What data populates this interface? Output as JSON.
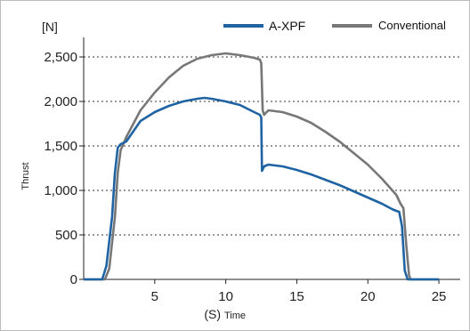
{
  "chart_data": {
    "type": "line",
    "y_unit": "[N]",
    "ylabel": "Thrust",
    "x_unit": "(S)",
    "xlabel": "Time",
    "xlim": [
      0,
      26.5
    ],
    "ylim": [
      0,
      2700
    ],
    "x_ticks": [
      5,
      10,
      15,
      20,
      25
    ],
    "y_ticks": [
      0,
      500,
      1000,
      1500,
      2000,
      2500
    ],
    "x_tick_labels": [
      "5",
      "10",
      "15",
      "20",
      "25"
    ],
    "y_tick_labels": [
      "0",
      "500",
      "1,000",
      "1,500",
      "2,000",
      "2,500"
    ],
    "grid": "horizontal dotted",
    "legend_position": "top",
    "colors": {
      "a_xpf": "#1f63a3",
      "conventional": "#777777"
    },
    "series": [
      {
        "name": "A-XPF",
        "x": [
          0,
          1.3,
          1.6,
          2.0,
          2.2,
          2.4,
          2.6,
          3.0,
          4.0,
          5.0,
          6.0,
          7.0,
          8.0,
          8.5,
          9.0,
          10.0,
          11.0,
          12.0,
          12.4,
          12.5,
          12.55,
          12.7,
          13.0,
          14.0,
          15.0,
          16.0,
          17.0,
          18.0,
          19.0,
          20.0,
          21.0,
          21.7,
          22.0,
          22.2,
          22.4,
          22.6,
          22.8,
          23.0,
          24.0,
          25.0
        ],
        "y": [
          0,
          0,
          150,
          700,
          1200,
          1480,
          1520,
          1550,
          1780,
          1880,
          1950,
          2000,
          2030,
          2040,
          2030,
          2000,
          1960,
          1880,
          1850,
          1820,
          1220,
          1270,
          1290,
          1270,
          1230,
          1180,
          1120,
          1060,
          990,
          920,
          850,
          790,
          770,
          760,
          600,
          100,
          0,
          0,
          0,
          0
        ]
      },
      {
        "name": "Conventional",
        "x": [
          0,
          1.5,
          1.8,
          2.2,
          2.4,
          2.6,
          3.0,
          4.0,
          5.0,
          6.0,
          7.0,
          8.0,
          9.0,
          10.0,
          11.0,
          12.0,
          12.4,
          12.5,
          12.6,
          12.7,
          13.0,
          14.0,
          15.0,
          16.0,
          17.0,
          18.0,
          19.0,
          20.0,
          21.0,
          22.0,
          22.3,
          22.5,
          22.7,
          22.9,
          23.0,
          24.0,
          25.0
        ],
        "y": [
          0,
          0,
          120,
          700,
          1200,
          1450,
          1600,
          1900,
          2100,
          2270,
          2400,
          2480,
          2520,
          2540,
          2520,
          2490,
          2470,
          2430,
          1900,
          1850,
          1900,
          1880,
          1830,
          1760,
          1660,
          1550,
          1420,
          1290,
          1130,
          950,
          850,
          800,
          400,
          50,
          0,
          0,
          0
        ]
      }
    ]
  }
}
